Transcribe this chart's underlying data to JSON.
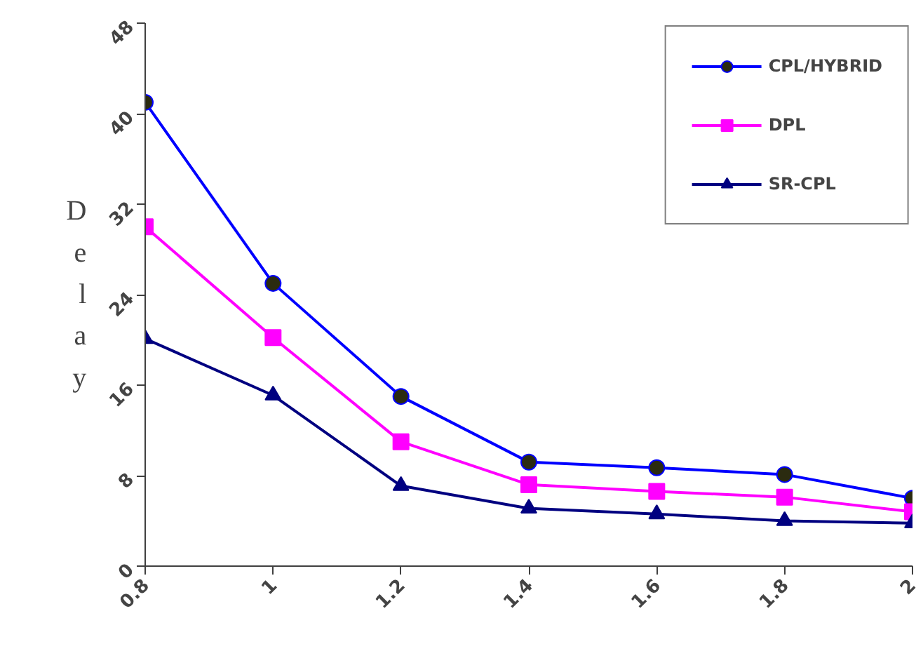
{
  "chart_data": {
    "type": "line",
    "ylabel": "Delay",
    "x": [
      0.8,
      1,
      1.2,
      1.4,
      1.6,
      1.8,
      2
    ],
    "series": [
      {
        "name": "CPL/HYBRID",
        "color": "#0000ff",
        "marker": "circle",
        "values": [
          41,
          25,
          15,
          9.2,
          8.7,
          8.1,
          6
        ]
      },
      {
        "name": "DPL",
        "color": "#ff00ff",
        "marker": "square",
        "values": [
          30,
          20.2,
          11,
          7.2,
          6.6,
          6.1,
          4.8
        ]
      },
      {
        "name": "SR-CPL",
        "color": "#000080",
        "marker": "triangle",
        "values": [
          20.1,
          15.1,
          7.1,
          5.1,
          4.6,
          4,
          3.8
        ]
      }
    ],
    "xlim": [
      0.8,
      2
    ],
    "xticks": [
      0.8,
      1,
      1.2,
      1.4,
      1.6,
      1.8,
      2
    ],
    "ylim": [
      0,
      48
    ],
    "yticks": [
      0,
      8,
      16,
      24,
      32,
      40,
      48
    ],
    "grid": false,
    "legend": "top right",
    "line_style": "solid"
  }
}
